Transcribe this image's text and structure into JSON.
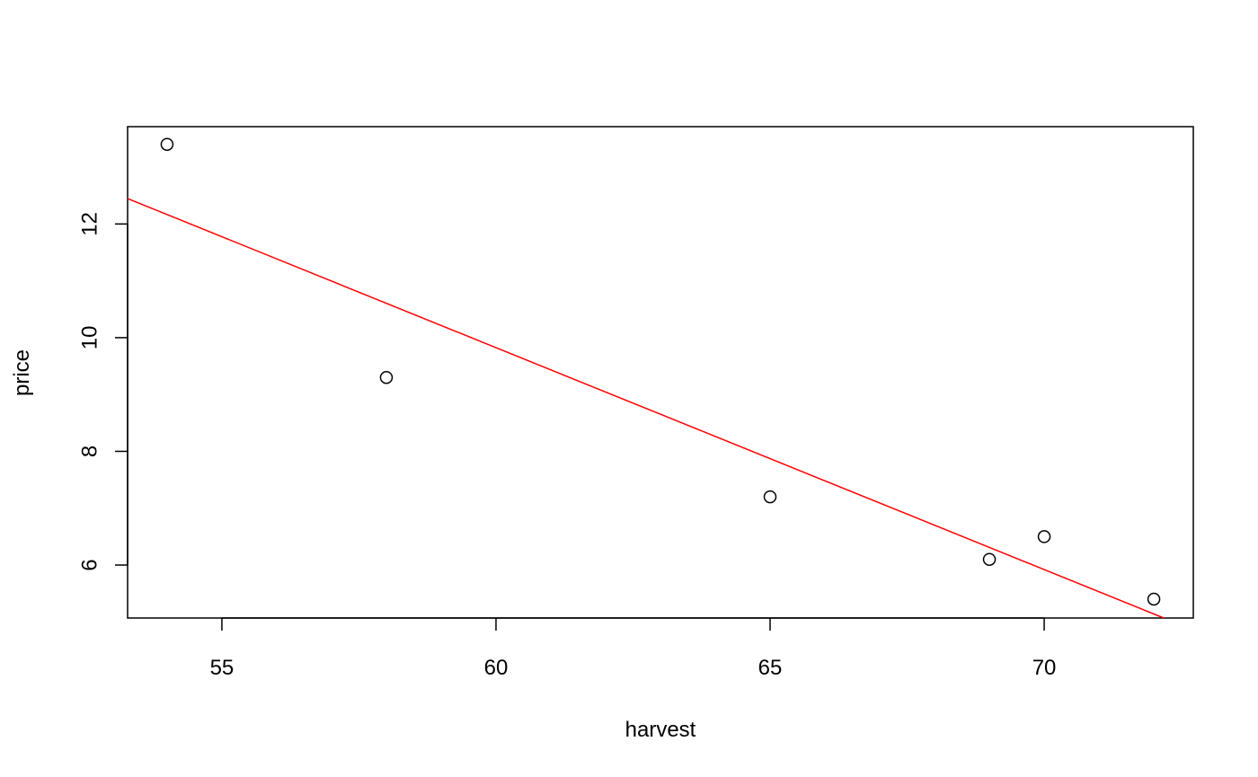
{
  "chart_data": {
    "type": "scatter",
    "title": "",
    "xlabel": "harvest",
    "ylabel": "price",
    "xlim": [
      53.28,
      72.72
    ],
    "ylim": [
      5.068,
      13.712
    ],
    "x_ticks": [
      55,
      60,
      65,
      70
    ],
    "y_ticks": [
      6,
      8,
      10,
      12
    ],
    "grid": false,
    "legend": "none",
    "points": [
      {
        "x": 54,
        "y": 13.4
      },
      {
        "x": 58,
        "y": 9.3
      },
      {
        "x": 65,
        "y": 7.2
      },
      {
        "x": 69,
        "y": 6.1
      },
      {
        "x": 70,
        "y": 6.5
      },
      {
        "x": 72,
        "y": 5.4
      }
    ],
    "fit_line": {
      "description": "least-squares regression line",
      "intercept": 33.248,
      "slope": -0.3904,
      "color": "#ff0000"
    },
    "point_color": "#000000"
  }
}
